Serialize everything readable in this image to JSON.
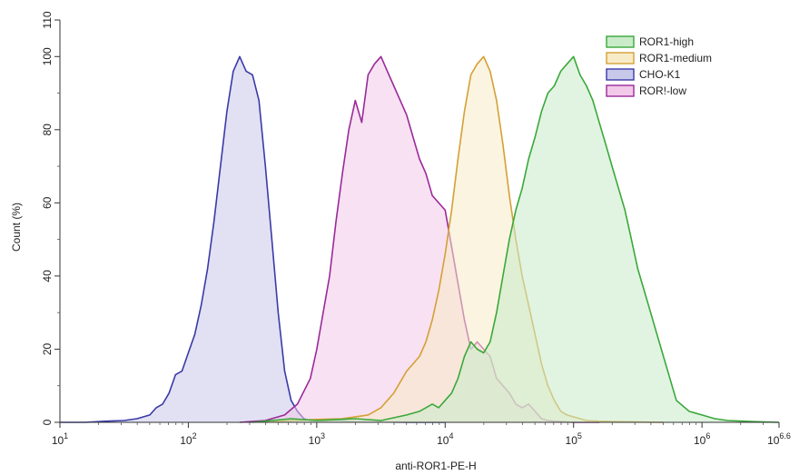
{
  "chart_data": {
    "type": "area",
    "title": "",
    "xlabel": "anti-ROR1-PE-H",
    "ylabel": "Count (%)",
    "x_scale": "log10",
    "xlim": [
      1,
      6.6
    ],
    "ylim": [
      0,
      110
    ],
    "x_ticks": [
      {
        "value": 1,
        "base": "10",
        "exp": "1"
      },
      {
        "value": 2,
        "base": "10",
        "exp": "2"
      },
      {
        "value": 3,
        "base": "10",
        "exp": "3"
      },
      {
        "value": 4,
        "base": "10",
        "exp": "4"
      },
      {
        "value": 5,
        "base": "10",
        "exp": "5"
      },
      {
        "value": 6,
        "base": "10",
        "exp": "6"
      },
      {
        "value": 6.6,
        "base": "10",
        "exp": "6.6"
      }
    ],
    "y_ticks": [
      "0",
      "20",
      "40",
      "60",
      "80",
      "100",
      "110"
    ],
    "y_tick_values": [
      0,
      20,
      40,
      60,
      80,
      100,
      110
    ],
    "grid": false,
    "legend_position": "top-right",
    "series": [
      {
        "name": "CHO-K1",
        "stroke": "#3a3aa8",
        "fill": "#c8c9ea",
        "x": [
          1.0,
          1.2,
          1.35,
          1.5,
          1.6,
          1.7,
          1.75,
          1.8,
          1.85,
          1.9,
          1.95,
          2.0,
          2.05,
          2.1,
          2.15,
          2.2,
          2.25,
          2.3,
          2.35,
          2.4,
          2.45,
          2.5,
          2.55,
          2.6,
          2.65,
          2.7,
          2.75,
          2.8,
          2.85,
          2.9,
          2.95,
          3.0,
          3.05,
          3.15,
          3.3,
          3.5,
          3.7,
          4.0
        ],
        "y": [
          0,
          0,
          0.3,
          0.5,
          1,
          2,
          4,
          5,
          8,
          13,
          14,
          19,
          24,
          32,
          42,
          55,
          70,
          85,
          96,
          100,
          96,
          95,
          88,
          70,
          50,
          30,
          14,
          6,
          3,
          1,
          0.5,
          0.8,
          0.3,
          0.5,
          0.2,
          0.1,
          0,
          0
        ]
      },
      {
        "name": "ROR!-low",
        "stroke": "#9a2a9a",
        "fill": "#f2c9e8",
        "x": [
          2.4,
          2.6,
          2.75,
          2.85,
          2.95,
          3.0,
          3.05,
          3.1,
          3.15,
          3.2,
          3.25,
          3.3,
          3.35,
          3.4,
          3.45,
          3.5,
          3.55,
          3.6,
          3.65,
          3.7,
          3.75,
          3.8,
          3.85,
          3.9,
          3.95,
          4.0,
          4.05,
          4.1,
          4.15,
          4.2,
          4.25,
          4.3,
          4.35,
          4.4,
          4.45,
          4.5,
          4.55,
          4.6,
          4.65,
          4.7,
          4.75,
          4.8,
          4.85,
          4.9,
          5.0,
          5.2
        ],
        "y": [
          0,
          0.5,
          2,
          5,
          12,
          20,
          30,
          40,
          55,
          68,
          80,
          88,
          82,
          95,
          98,
          100,
          96,
          92,
          88,
          84,
          78,
          72,
          68,
          62,
          60,
          58,
          48,
          38,
          28,
          20,
          22,
          20,
          18,
          12,
          10,
          8,
          5,
          4,
          5,
          3,
          1,
          0.5,
          0.3,
          0.2,
          0,
          0
        ]
      },
      {
        "name": "ROR1-medium",
        "stroke": "#d4a035",
        "fill": "#f7ebc8",
        "x": [
          2.6,
          2.8,
          3.0,
          3.2,
          3.4,
          3.5,
          3.6,
          3.7,
          3.75,
          3.8,
          3.85,
          3.9,
          3.95,
          4.0,
          4.05,
          4.1,
          4.15,
          4.2,
          4.25,
          4.3,
          4.35,
          4.4,
          4.45,
          4.5,
          4.55,
          4.6,
          4.65,
          4.7,
          4.75,
          4.8,
          4.85,
          4.9,
          4.95,
          5.0,
          5.05,
          5.1,
          5.2,
          5.3,
          5.5,
          5.7
        ],
        "y": [
          0,
          0.5,
          0.8,
          1,
          2,
          4,
          8,
          14,
          16,
          18,
          22,
          28,
          36,
          46,
          58,
          72,
          85,
          95,
          98,
          100,
          96,
          88,
          76,
          62,
          50,
          40,
          32,
          24,
          16,
          10,
          6,
          3,
          2,
          1.5,
          1,
          0.5,
          0.3,
          0.2,
          0.1,
          0
        ]
      },
      {
        "name": "ROR1-high",
        "stroke": "#3aa83a",
        "fill": "#c9ebc9",
        "x": [
          2.5,
          2.8,
          3.0,
          3.3,
          3.5,
          3.7,
          3.8,
          3.9,
          3.95,
          4.0,
          4.05,
          4.1,
          4.15,
          4.2,
          4.25,
          4.3,
          4.35,
          4.4,
          4.45,
          4.5,
          4.55,
          4.6,
          4.65,
          4.7,
          4.75,
          4.8,
          4.85,
          4.9,
          4.95,
          5.0,
          5.05,
          5.1,
          5.15,
          5.2,
          5.25,
          5.3,
          5.35,
          5.4,
          5.45,
          5.5,
          5.55,
          5.6,
          5.65,
          5.7,
          5.75,
          5.8,
          5.9,
          6.0,
          6.1,
          6.2,
          6.4,
          6.6
        ],
        "y": [
          0,
          1,
          0.5,
          1,
          0.5,
          2,
          3,
          5,
          4,
          6,
          8,
          12,
          18,
          22,
          20,
          19,
          22,
          30,
          40,
          50,
          58,
          64,
          72,
          78,
          85,
          90,
          92,
          96,
          98,
          100,
          95,
          92,
          88,
          82,
          76,
          70,
          64,
          58,
          50,
          42,
          36,
          30,
          24,
          18,
          12,
          6,
          3,
          2,
          1,
          0.5,
          0.2,
          0
        ]
      }
    ],
    "legend": [
      {
        "label": "ROR1-high",
        "stroke": "#3aa83a",
        "fill": "#c9ebc9"
      },
      {
        "label": "ROR1-medium",
        "stroke": "#d4a035",
        "fill": "#f7ebc8"
      },
      {
        "label": "CHO-K1",
        "stroke": "#3a3aa8",
        "fill": "#c8c9ea"
      },
      {
        "label": "ROR!-low",
        "stroke": "#9a2a9a",
        "fill": "#f2c9e8"
      }
    ]
  }
}
